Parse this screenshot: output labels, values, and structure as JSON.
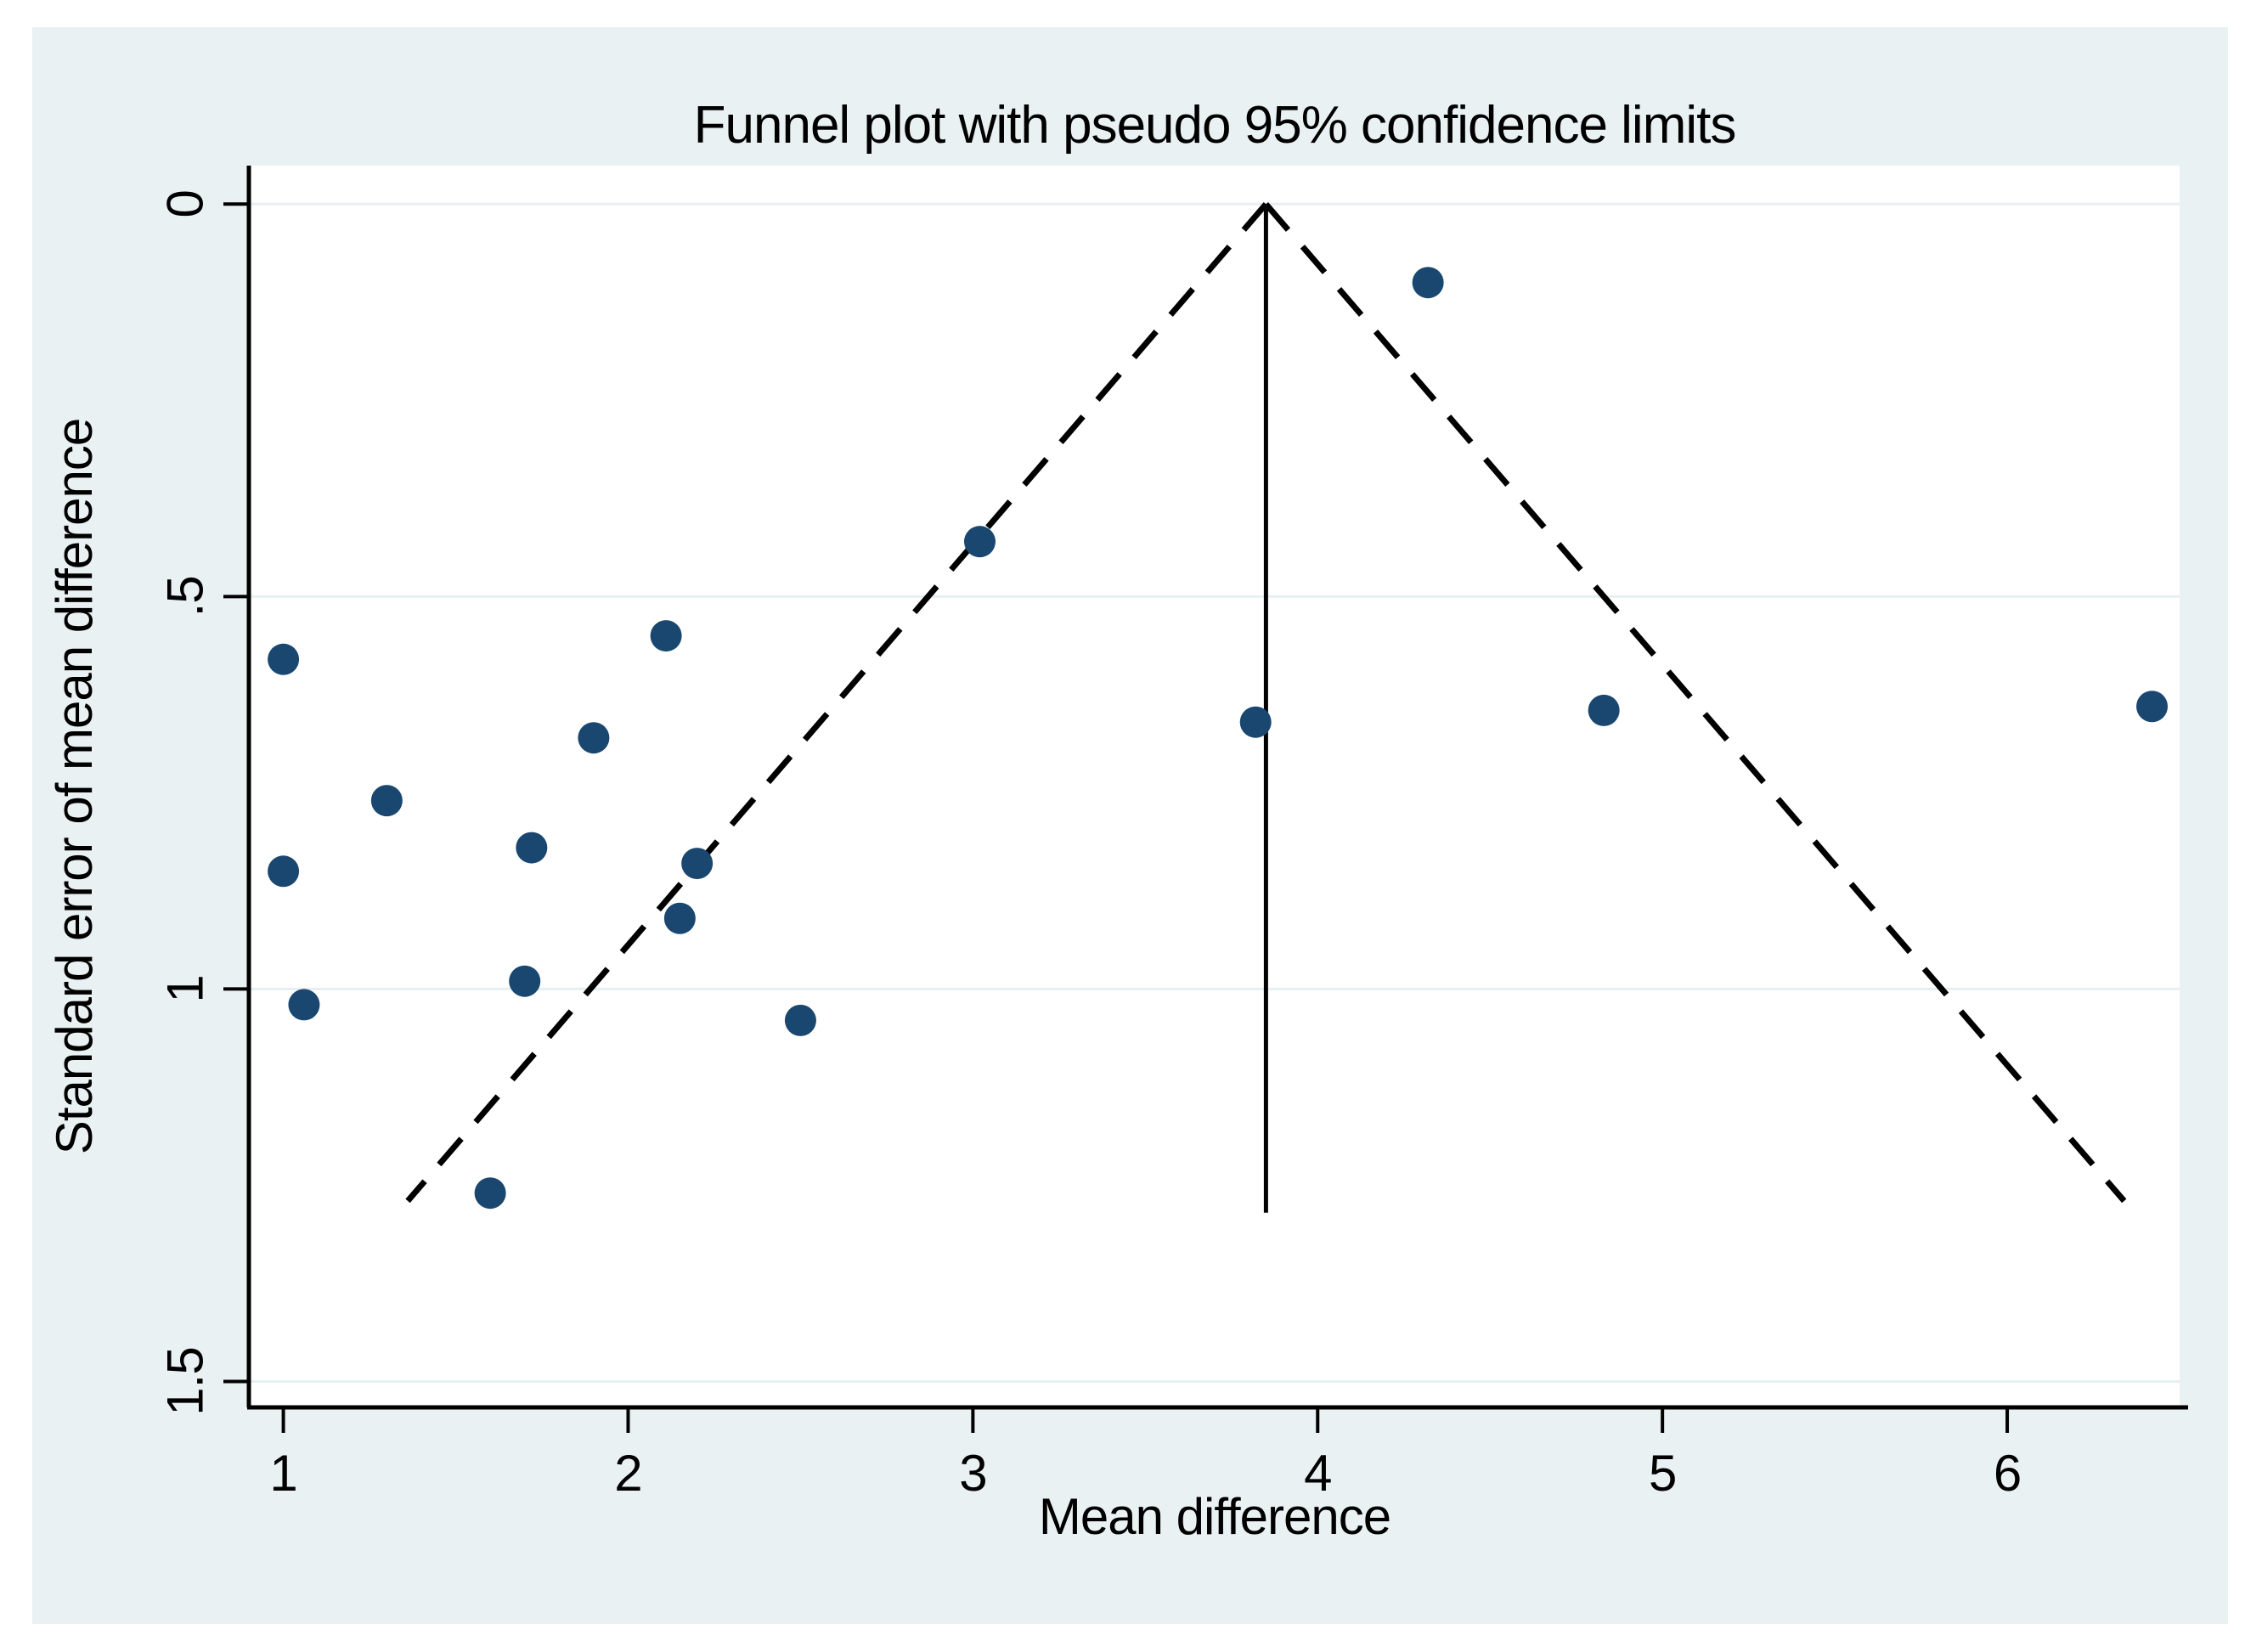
{
  "figure": {
    "title": "Funnel plot with pseudo 95% confidence limits"
  },
  "axes": {
    "x": {
      "label": "Mean difference",
      "tick_labels": [
        "1",
        "2",
        "3",
        "4",
        "5",
        "6"
      ],
      "tick_values": [
        1,
        2,
        3,
        4,
        5,
        6
      ]
    },
    "y": {
      "label": "Standard error of mean difference",
      "tick_labels": [
        "0",
        ".5",
        "1",
        "1.5"
      ],
      "tick_values": [
        0,
        0.5,
        1,
        1.5
      ]
    }
  },
  "colors": {
    "figure_background": "#e9f1f2",
    "plot_background": "#ffffff",
    "gridline": "#e6f0f2",
    "marker": "#1a476f",
    "axis_line": "#000000",
    "funnel_line": "#000000"
  },
  "chart_data": {
    "type": "scatter",
    "title": "Funnel plot with pseudo 95% confidence limits",
    "xlabel": "Mean difference",
    "ylabel": "Standard error of mean difference",
    "xlim": [
      0.9,
      6.5
    ],
    "ylim_se": [
      -0.049,
      1.533
    ],
    "y_axis_inverted": true,
    "grid": "horizontal gridlines at y ticks",
    "points": [
      {
        "mean_diff": 1.0,
        "se": 0.58
      },
      {
        "mean_diff": 1.0,
        "se": 0.85
      },
      {
        "mean_diff": 1.06,
        "se": 1.02
      },
      {
        "mean_diff": 1.3,
        "se": 0.76
      },
      {
        "mean_diff": 1.6,
        "se": 1.26
      },
      {
        "mean_diff": 1.7,
        "se": 0.99
      },
      {
        "mean_diff": 1.72,
        "se": 0.82
      },
      {
        "mean_diff": 1.9,
        "se": 0.68
      },
      {
        "mean_diff": 2.11,
        "se": 0.55
      },
      {
        "mean_diff": 2.2,
        "se": 0.84
      },
      {
        "mean_diff": 2.15,
        "se": 0.91
      },
      {
        "mean_diff": 2.5,
        "se": 1.04
      },
      {
        "mean_diff": 3.02,
        "se": 0.43
      },
      {
        "mean_diff": 3.82,
        "se": 0.66
      },
      {
        "mean_diff": 4.32,
        "se": 0.1
      },
      {
        "mean_diff": 4.83,
        "se": 0.645
      },
      {
        "mean_diff": 6.42,
        "se": 0.64
      }
    ],
    "pooled_effect_line": {
      "mean_diff": 3.85,
      "se_start": 0,
      "se_end": 1.285,
      "style": "solid"
    },
    "pseudo_ci_funnel": {
      "center": 3.85,
      "multiplier": 1.96,
      "se_start": 0,
      "se_end": 1.27,
      "style": "dashed"
    }
  }
}
